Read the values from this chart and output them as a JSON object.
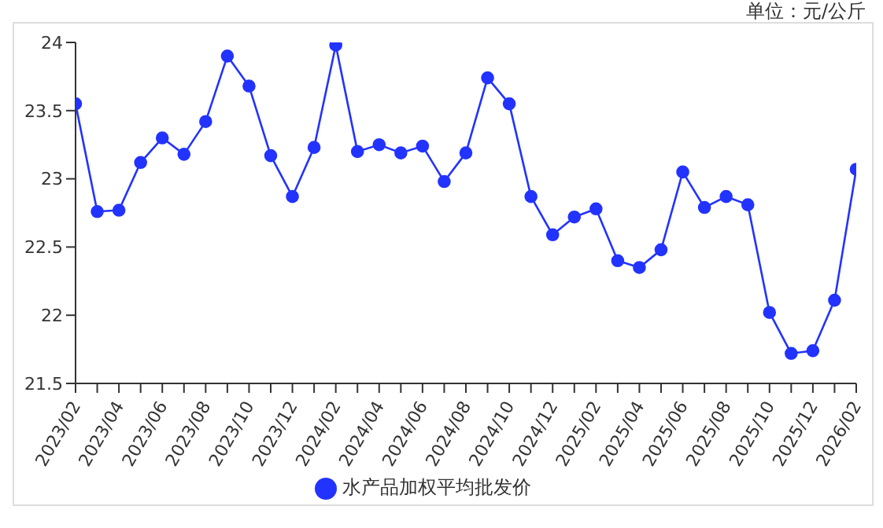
{
  "chart_data": {
    "type": "line",
    "ylabel": "单位：元/公斤",
    "categories": [
      "2023/02",
      null,
      "2023/04",
      null,
      "2023/06",
      null,
      "2023/08",
      null,
      "2023/10",
      null,
      "2023/12",
      null,
      "2024/02",
      null,
      "2024/04",
      null,
      "2024/06",
      null,
      "2024/08",
      null,
      "2024/10",
      null,
      "2024/12",
      null,
      "2025/02",
      null,
      "2025/04",
      null,
      "2025/06",
      null,
      "2025/08",
      null,
      "2025/10",
      null,
      "2025/12",
      null,
      "2026/02"
    ],
    "series": [
      {
        "name": "水产品加权平均批发价",
        "color": "#2233ff",
        "values": [
          23.55,
          22.76,
          22.77,
          23.12,
          23.3,
          23.18,
          23.42,
          23.9,
          23.68,
          23.17,
          22.87,
          23.23,
          23.98,
          23.2,
          23.25,
          23.19,
          23.24,
          22.98,
          23.19,
          23.74,
          23.55,
          22.87,
          22.59,
          22.72,
          22.78,
          22.4,
          22.35,
          22.48,
          23.05,
          22.79,
          22.87,
          22.81,
          22.02,
          21.72,
          21.74,
          22.11,
          23.07
        ]
      }
    ],
    "ylim": [
      21.5,
      24
    ],
    "yticks": [
      21.5,
      22,
      22.5,
      23,
      23.5,
      24
    ],
    "grid": false,
    "legend": "bottom",
    "marker": "circle",
    "line_style": "solid"
  }
}
